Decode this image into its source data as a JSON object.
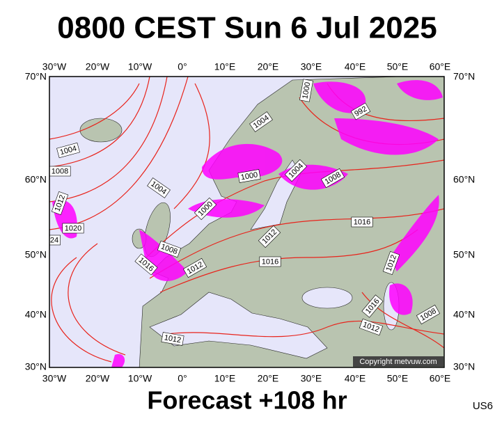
{
  "header": {
    "title": "0800 CEST Sun 6 Jul 2025"
  },
  "map": {
    "longitude_labels": [
      "30°W",
      "20°W",
      "10°W",
      "0°",
      "10°E",
      "20°E",
      "30°E",
      "40°E",
      "50°E",
      "60°E"
    ],
    "latitude_labels": [
      "70°N",
      "60°N",
      "50°N",
      "40°N",
      "30°N"
    ],
    "isobar_labels": [
      "1000",
      "992",
      "1004",
      "1004",
      "1008",
      "1000",
      "1004",
      "1008",
      "1004",
      "1012",
      "1000",
      "1016",
      "1020",
      "1012",
      "24",
      "1008",
      "1016",
      "1012",
      "1016",
      "1012",
      "1016",
      "1008",
      "1012",
      "1012"
    ],
    "copyright": "Copyright metvuw.com"
  },
  "footer": {
    "forecast": "Forecast +108 hr",
    "code": "US6"
  }
}
